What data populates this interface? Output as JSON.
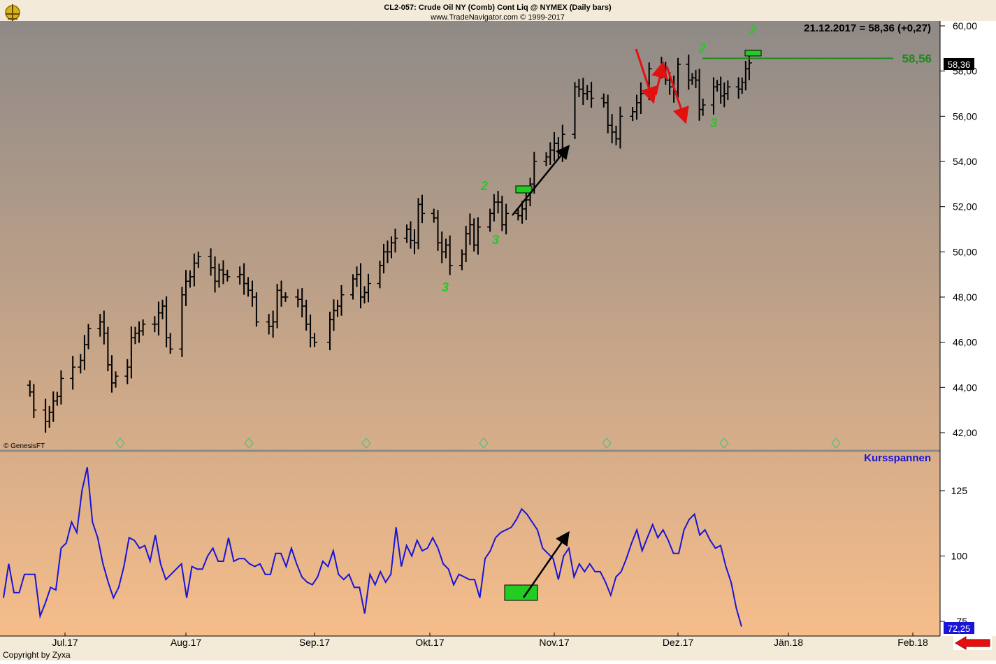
{
  "header": {
    "title": "CL2-057:  Crude Oil NY (Comb) Cont Liq @ NYMEX  (Daily bars)",
    "subtitle": "www.TradeNavigator.com © 1999-2017",
    "quote": "21.12.2017 = 58,36 (+0,27)"
  },
  "price_panel": {
    "credit": "© GenesisFT",
    "current_price_tag": "58,36",
    "level_line_label": "58,56",
    "x_ticks": [
      "Jul.17",
      "Aug.17",
      "Sep.17",
      "Okt.17",
      "Nov.17",
      "Dez.17",
      "Jän.18",
      "Feb.18"
    ],
    "markers": [
      {
        "text": "2",
        "color": "#22cc22"
      },
      {
        "text": "3",
        "color": "#22cc22"
      },
      {
        "text": "3",
        "color": "#22cc22"
      },
      {
        "text": "2",
        "color": "#22cc22"
      },
      {
        "text": "3",
        "color": "#22cc22"
      },
      {
        "text": "2",
        "color": "#22cc22"
      }
    ]
  },
  "indicator_panel": {
    "label": "Kursspannen",
    "current_value_tag": "72,25"
  },
  "footer": {
    "copyright": "Copyright by Zyxa"
  },
  "colors": {
    "bars": "#000000",
    "indicator_line": "#1a14d8",
    "marker_green": "#22cc22",
    "level_line": "#1a8a1a",
    "arrow_red": "#e41010",
    "arrow_black": "#000000",
    "panel_top_gradient": "#8f8a87",
    "panel_bottom_gradient": "#f6bd8a"
  },
  "chart_data": [
    {
      "type": "ohlc",
      "title": "CL2-057:  Crude Oil NY (Comb) Cont Liq @ NYMEX  (Daily bars)",
      "ylim": [
        41,
        60.5
      ],
      "y_ticks": [
        "60,00",
        "58,00",
        "56,00",
        "54,00",
        "52,00",
        "50,00",
        "48,00",
        "46,00",
        "44,00",
        "42,00"
      ],
      "y_tick_values": [
        60,
        58,
        56,
        54,
        52,
        50,
        48,
        46,
        44,
        42
      ],
      "x_ticks": [
        "Jul.17",
        "Aug.17",
        "Sep.17",
        "Okt.17",
        "Nov.17",
        "Dez.17",
        "Jän.18",
        "Feb.18"
      ],
      "x_tick_dates": [
        "2017-07-01",
        "2017-08-01",
        "2017-09-01",
        "2017-10-01",
        "2017-11-01",
        "2017-12-01",
        "2018-01-01",
        "2018-02-01"
      ],
      "level_line": 58.56,
      "last_close": 58.36,
      "close_dates": [
        "2017-06-22",
        "2017-06-23",
        "2017-06-26",
        "2017-06-27",
        "2017-06-28",
        "2017-06-29",
        "2017-06-30",
        "2017-07-03",
        "2017-07-05",
        "2017-07-06",
        "2017-07-07",
        "2017-07-10",
        "2017-07-11",
        "2017-07-12",
        "2017-07-13",
        "2017-07-14",
        "2017-07-17",
        "2017-07-18",
        "2017-07-19",
        "2017-07-20",
        "2017-07-21",
        "2017-07-24",
        "2017-07-25",
        "2017-07-26",
        "2017-07-27",
        "2017-07-28",
        "2017-07-31",
        "2017-08-01",
        "2017-08-02",
        "2017-08-03",
        "2017-08-04",
        "2017-08-07",
        "2017-08-08",
        "2017-08-09",
        "2017-08-10",
        "2017-08-11",
        "2017-08-14",
        "2017-08-15",
        "2017-08-16",
        "2017-08-17",
        "2017-08-18",
        "2017-08-21",
        "2017-08-22",
        "2017-08-23",
        "2017-08-24",
        "2017-08-25",
        "2017-08-28",
        "2017-08-29",
        "2017-08-30",
        "2017-08-31",
        "2017-09-01",
        "2017-09-05",
        "2017-09-06",
        "2017-09-07",
        "2017-09-08",
        "2017-09-11",
        "2017-09-12",
        "2017-09-13",
        "2017-09-14",
        "2017-09-15",
        "2017-09-18",
        "2017-09-19",
        "2017-09-20",
        "2017-09-21",
        "2017-09-22",
        "2017-09-25",
        "2017-09-26",
        "2017-09-27",
        "2017-09-28",
        "2017-09-29",
        "2017-10-02",
        "2017-10-03",
        "2017-10-04",
        "2017-10-05",
        "2017-10-06",
        "2017-10-09",
        "2017-10-10",
        "2017-10-11",
        "2017-10-12",
        "2017-10-13",
        "2017-10-16",
        "2017-10-17",
        "2017-10-18",
        "2017-10-19",
        "2017-10-20",
        "2017-10-23",
        "2017-10-24",
        "2017-10-25",
        "2017-10-26",
        "2017-10-27",
        "2017-10-30",
        "2017-10-31",
        "2017-11-01",
        "2017-11-02",
        "2017-11-03",
        "2017-11-06",
        "2017-11-07",
        "2017-11-08",
        "2017-11-09",
        "2017-11-10",
        "2017-11-13",
        "2017-11-14",
        "2017-11-15",
        "2017-11-16",
        "2017-11-17",
        "2017-11-20",
        "2017-11-21",
        "2017-11-22",
        "2017-11-24",
        "2017-11-27",
        "2017-11-28",
        "2017-11-29",
        "2017-11-30",
        "2017-12-01",
        "2017-12-04",
        "2017-12-05",
        "2017-12-06",
        "2017-12-07",
        "2017-12-08",
        "2017-12-11",
        "2017-12-12",
        "2017-12-13",
        "2017-12-14",
        "2017-12-15",
        "2017-12-18",
        "2017-12-19",
        "2017-12-20",
        "2017-12-21"
      ],
      "closes": [
        43.8,
        43.0,
        42.5,
        42.9,
        43.4,
        43.6,
        44.4,
        44.9,
        45.2,
        45.9,
        46.6,
        46.9,
        46.4,
        45.0,
        44.2,
        44.5,
        44.9,
        46.2,
        46.4,
        46.5,
        46.8,
        46.8,
        47.3,
        47.6,
        46.2,
        45.7,
        48.1,
        48.7,
        48.9,
        49.5,
        49.8,
        49.3,
        48.7,
        49.2,
        49.0,
        48.9,
        49.0,
        48.6,
        48.3,
        48.0,
        46.9,
        46.7,
        46.9,
        48.3,
        48.0,
        48.0,
        47.9,
        47.6,
        46.8,
        46.2,
        46.0,
        47.0,
        47.4,
        47.6,
        48.1,
        48.8,
        49.0,
        48.0,
        48.2,
        48.6,
        49.4,
        50.0,
        50.0,
        50.4,
        50.6,
        51.0,
        50.5,
        50.4,
        52.1,
        51.7,
        51.5,
        50.4,
        50.0,
        50.3,
        49.4,
        49.9,
        50.8,
        51.2,
        50.3,
        51.1,
        51.7,
        52.2,
        52.2,
        51.2,
        51.7,
        51.6,
        51.9,
        52.3,
        53.0,
        54.0,
        54.2,
        54.5,
        54.8,
        54.4,
        55.2,
        57.3,
        57.2,
        57.0,
        57.1,
        56.8,
        56.6,
        55.6,
        55.3,
        55.0,
        56.0,
        56.2,
        56.6,
        57.0,
        58.1,
        58.2,
        57.6,
        57.3,
        57.1,
        58.3,
        57.6,
        57.7,
        57.6,
        56.3,
        56.5,
        57.3,
        57.4,
        56.9,
        57.0,
        57.3,
        57.2,
        57.5,
        58.1,
        58.36
      ]
    },
    {
      "type": "line",
      "title": "Kursspannen",
      "ylim": [
        70,
        136
      ],
      "y_ticks": [
        "125",
        "100",
        "75"
      ],
      "y_tick_values": [
        125,
        100,
        75
      ],
      "last_value": 72.25,
      "series": [
        {
          "name": "Kursspannen",
          "values": [
            84,
            97,
            86,
            86,
            93,
            93,
            93,
            77,
            82,
            88,
            87,
            103,
            105,
            113,
            109,
            125,
            134,
            113,
            107,
            97,
            90,
            84,
            88,
            96,
            107,
            106,
            103,
            104,
            98,
            108,
            97,
            91,
            93,
            95,
            97,
            84,
            96,
            95,
            95,
            100,
            103,
            98,
            98,
            107,
            98,
            99,
            99,
            97,
            96,
            97,
            93,
            93,
            101,
            101,
            96,
            103,
            97,
            92,
            90,
            89,
            92,
            98,
            96,
            102,
            93,
            91,
            93,
            88,
            88,
            78,
            93,
            89,
            94,
            90,
            93,
            111,
            96,
            104,
            100,
            106,
            102,
            103,
            107,
            103,
            97,
            95,
            89,
            93,
            92,
            91,
            91,
            84,
            99,
            102,
            107,
            109,
            110,
            111,
            114,
            118,
            116,
            113,
            110,
            103,
            101,
            99,
            91,
            100,
            103,
            92,
            97,
            94,
            97,
            94,
            94,
            90,
            85,
            92,
            94,
            99,
            105,
            110,
            102,
            107,
            112,
            107,
            110,
            106,
            101,
            101,
            110,
            114,
            116,
            108,
            110,
            106,
            103,
            104,
            96,
            90,
            80,
            73
          ]
        }
      ]
    }
  ]
}
